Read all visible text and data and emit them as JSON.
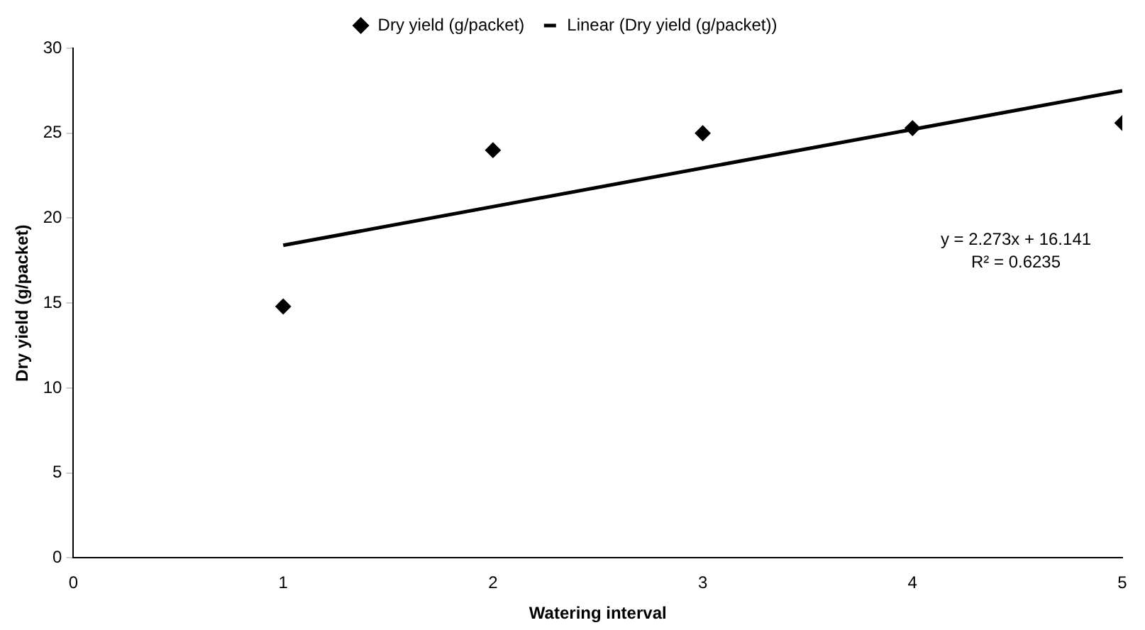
{
  "chart_data": {
    "type": "scatter",
    "xlabel": "Watering interval",
    "ylabel": "Dry yield (g/packet)",
    "xlim": [
      0,
      5
    ],
    "xticks": [
      0,
      1,
      2,
      3,
      4,
      5
    ],
    "ylim": [
      0,
      30
    ],
    "yticks": [
      0,
      5,
      10,
      15,
      20,
      25,
      30
    ],
    "grid": false,
    "legend": "top",
    "marker": "diamond",
    "series": [
      {
        "name": "Dry yield (g/packet)",
        "type": "scatter",
        "color": "#000000",
        "x": [
          1,
          2,
          3,
          4,
          5
        ],
        "values": [
          14.8,
          24.0,
          25.0,
          25.3,
          25.6
        ]
      },
      {
        "name": "Linear (Dry yield (g/packet))",
        "type": "line",
        "color": "#000000",
        "x": [
          1,
          5
        ],
        "values": [
          18.4,
          27.5
        ],
        "line_style": "solid",
        "marker": "none"
      }
    ],
    "annotations": [
      "y = 2.273x + 16.141",
      "R² = 0.6235"
    ]
  }
}
